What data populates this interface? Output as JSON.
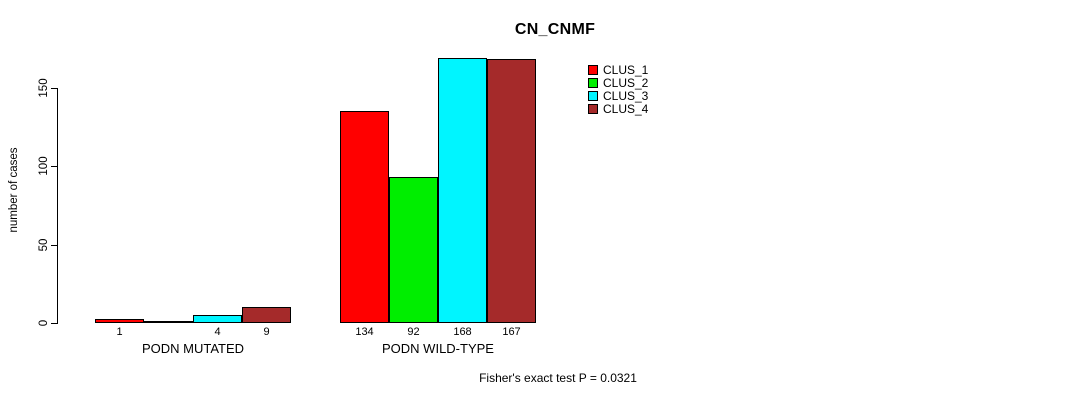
{
  "title": "CN_CNMF",
  "footer": "Fisher's exact test P = 0.0321",
  "chart_data": {
    "type": "bar",
    "title": "CN_CNMF",
    "xlabel": "",
    "ylabel": "number of cases",
    "yticks": [
      0,
      50,
      100,
      150
    ],
    "ylim": [
      0,
      150
    ],
    "grid": false,
    "legend_position": "top-right-inside",
    "categories": [
      "PODN MUTATED",
      "PODN WILD-TYPE"
    ],
    "series": [
      {
        "name": "CLUS_1",
        "color": "#FF0000",
        "values": [
          1,
          134
        ]
      },
      {
        "name": "CLUS_2",
        "color": "#00EE00",
        "values": [
          0,
          92
        ]
      },
      {
        "name": "CLUS_3",
        "color": "#00F5FF",
        "values": [
          4,
          168
        ]
      },
      {
        "name": "CLUS_4",
        "color": "#A52A2A",
        "values": [
          9,
          167
        ]
      }
    ],
    "bar_value_labels": [
      [
        "1",
        "",
        "4",
        "9"
      ],
      [
        "134",
        "92",
        "168",
        "167"
      ]
    ],
    "annotation": "Fisher's exact test P = 0.0321",
    "axis_color": "#000000",
    "bar_border_color": "#000000"
  }
}
